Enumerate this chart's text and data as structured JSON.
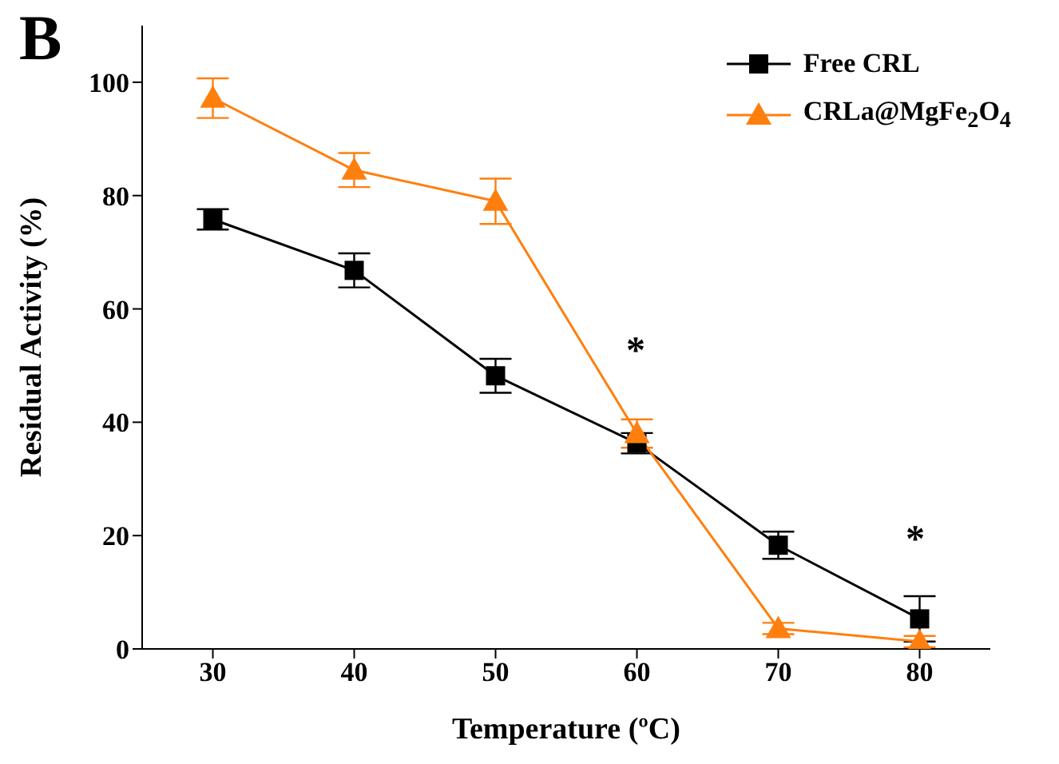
{
  "chart_data": {
    "type": "line",
    "title": "B",
    "xlabel": "Temperature (ºC)",
    "ylabel": "Residual Activity (%)",
    "x": [
      30,
      40,
      50,
      60,
      70,
      80
    ],
    "series": [
      {
        "name": "Free CRL",
        "color": "#000000",
        "marker": "square",
        "values": [
          75.8,
          66.8,
          48.2,
          36.3,
          18.3,
          5.3
        ],
        "errors": [
          1.8,
          3,
          3,
          1.8,
          2.4,
          4
        ]
      },
      {
        "name": "CRLa@MgFe$_{2}$O$_{4}$",
        "color": "#ff7f0e",
        "marker": "triangle",
        "values": [
          97.2,
          84.5,
          79,
          38,
          3.6,
          1.3
        ],
        "errors": [
          3.5,
          3,
          4,
          2.5,
          1,
          1
        ]
      }
    ],
    "xlim": [
      25,
      85
    ],
    "xticks": [
      30,
      40,
      50,
      60,
      70,
      80
    ],
    "ylim": [
      0,
      110
    ],
    "yticks": [
      0,
      20,
      40,
      60,
      80,
      100
    ],
    "legend": "top right",
    "annotations": [
      "*",
      "*"
    ]
  }
}
